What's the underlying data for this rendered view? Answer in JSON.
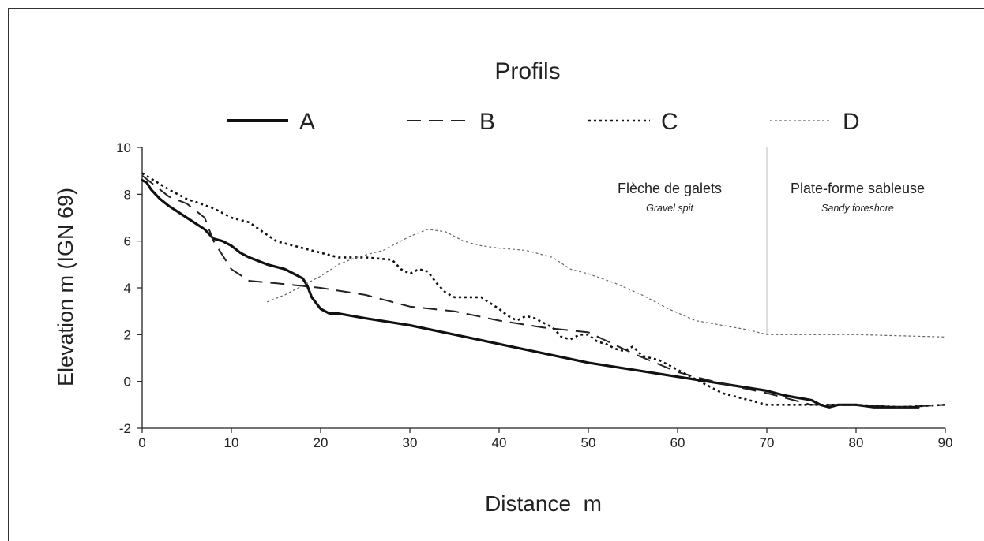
{
  "chart_data": {
    "type": "line",
    "title": "Profils",
    "xlabel": "Distance  m",
    "ylabel": "Elevation m (IGN 69)",
    "xlim": [
      0,
      90
    ],
    "ylim": [
      -2,
      10
    ],
    "x_ticks": [
      "0",
      "10",
      "20",
      "30",
      "40",
      "50",
      "60",
      "70",
      "80",
      "90"
    ],
    "y_ticks": [
      "-2",
      "0",
      "2",
      "4",
      "6",
      "8",
      "10"
    ],
    "grid": false,
    "legend": "top",
    "zones": [
      {
        "label": "Flèche de galets",
        "sublabel": "Gravel spit"
      },
      {
        "label": "Plate-forme sableuse",
        "sublabel": "Sandy foreshore"
      }
    ],
    "zone_divider_x": 70,
    "series": [
      {
        "name": "A",
        "style": "solid",
        "x": [
          0,
          0.5,
          1,
          2,
          3,
          5,
          7,
          7.5,
          8,
          9,
          10,
          11,
          12,
          14,
          16,
          17,
          18,
          18.5,
          19,
          20,
          21,
          22,
          25,
          30,
          35,
          40,
          45,
          50,
          55,
          60,
          65,
          70,
          72,
          75,
          76,
          77,
          78,
          80,
          82,
          85,
          87
        ],
        "y": [
          8.6,
          8.5,
          8.2,
          7.8,
          7.5,
          7.0,
          6.5,
          6.3,
          6.1,
          6.0,
          5.8,
          5.5,
          5.3,
          5.0,
          4.8,
          4.6,
          4.4,
          4.1,
          3.6,
          3.1,
          2.9,
          2.9,
          2.7,
          2.4,
          2.0,
          1.6,
          1.2,
          0.8,
          0.5,
          0.2,
          -0.1,
          -0.4,
          -0.6,
          -0.8,
          -1.0,
          -1.1,
          -1.0,
          -1.0,
          -1.1,
          -1.1,
          -1.1
        ]
      },
      {
        "name": "B",
        "style": "dashed",
        "x": [
          0,
          3,
          5,
          7,
          8,
          10,
          12,
          15,
          20,
          25,
          30,
          35,
          40,
          45,
          50,
          55,
          60,
          65,
          70,
          75,
          80,
          85,
          90
        ],
        "y": [
          8.8,
          7.9,
          7.6,
          7.0,
          6.0,
          4.8,
          4.3,
          4.2,
          4.0,
          3.7,
          3.2,
          3.0,
          2.6,
          2.3,
          2.1,
          1.2,
          0.4,
          -0.1,
          -0.5,
          -1.0,
          -1.0,
          -1.1,
          -1.0
        ]
      },
      {
        "name": "C",
        "style": "dotted",
        "x": [
          0,
          3,
          5,
          8,
          10,
          12,
          15,
          18,
          22,
          25,
          28,
          29,
          30,
          31,
          32,
          33,
          34,
          35,
          36,
          37,
          38,
          40,
          41,
          42,
          43,
          44,
          45,
          46,
          47,
          48,
          49,
          50,
          51,
          52,
          53,
          54,
          55,
          56,
          57,
          58,
          60,
          62,
          65,
          68,
          70,
          72,
          75,
          80,
          85,
          90
        ],
        "y": [
          8.9,
          8.2,
          7.8,
          7.4,
          7.0,
          6.8,
          6.0,
          5.7,
          5.3,
          5.3,
          5.2,
          4.8,
          4.6,
          4.8,
          4.7,
          4.2,
          3.8,
          3.6,
          3.6,
          3.6,
          3.6,
          3.1,
          2.8,
          2.6,
          2.8,
          2.7,
          2.5,
          2.3,
          1.9,
          1.8,
          2.0,
          2.0,
          1.7,
          1.6,
          1.4,
          1.3,
          1.5,
          1.1,
          1.0,
          0.9,
          0.5,
          0.1,
          -0.5,
          -0.8,
          -1.0,
          -1.0,
          -1.0,
          -1.0,
          -1.1,
          -1.0
        ]
      },
      {
        "name": "D",
        "style": "thin-dotted",
        "x": [
          14,
          16,
          18,
          20,
          22,
          24,
          27,
          30,
          32,
          34,
          36,
          38,
          40,
          43,
          46,
          48,
          50,
          53,
          56,
          59,
          62,
          65,
          68,
          70,
          75,
          80,
          85,
          90
        ],
        "y": [
          3.4,
          3.7,
          4.1,
          4.5,
          5.0,
          5.3,
          5.6,
          6.2,
          6.5,
          6.4,
          6.0,
          5.8,
          5.7,
          5.6,
          5.3,
          4.8,
          4.6,
          4.2,
          3.7,
          3.1,
          2.6,
          2.4,
          2.2,
          2.0,
          2.0,
          2.0,
          1.95,
          1.9
        ]
      }
    ]
  }
}
